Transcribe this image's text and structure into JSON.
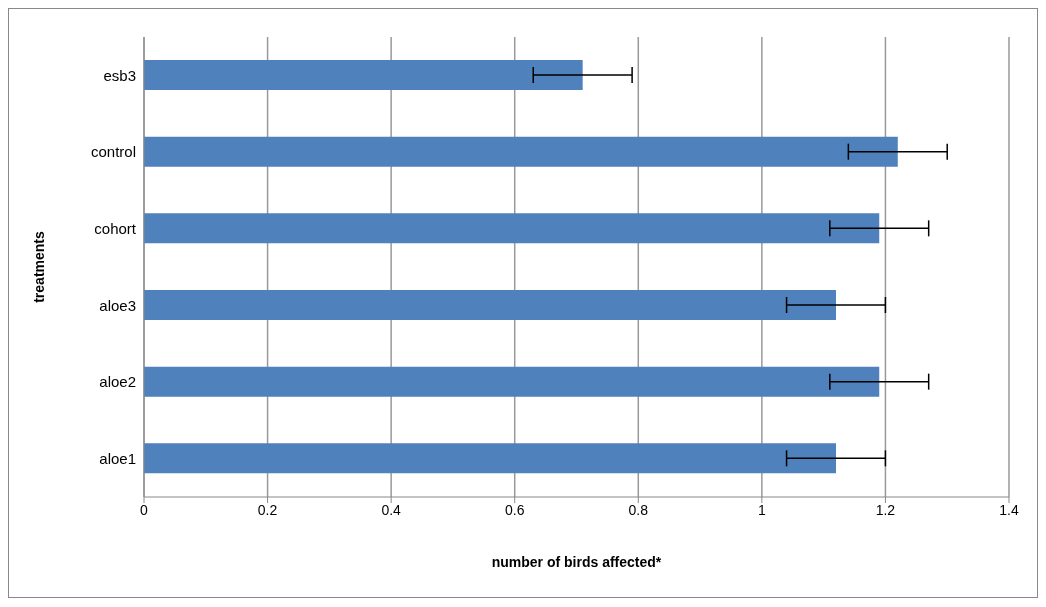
{
  "chart_data": {
    "type": "bar",
    "orientation": "horizontal",
    "xlabel": "number of birds affected*",
    "ylabel": "treatments",
    "categories": [
      "esb3",
      "control",
      "cohort",
      "aloe3",
      "aloe2",
      "aloe1"
    ],
    "values": [
      0.71,
      1.22,
      1.19,
      1.12,
      1.19,
      1.12
    ],
    "errors": [
      0.08,
      0.08,
      0.08,
      0.08,
      0.08,
      0.08
    ],
    "color": "#4f81bd",
    "xlim": [
      0,
      1.4
    ],
    "xticks": [
      0,
      0.2,
      0.4,
      0.6,
      0.8,
      1,
      1.2,
      1.4
    ],
    "grid": "x"
  }
}
